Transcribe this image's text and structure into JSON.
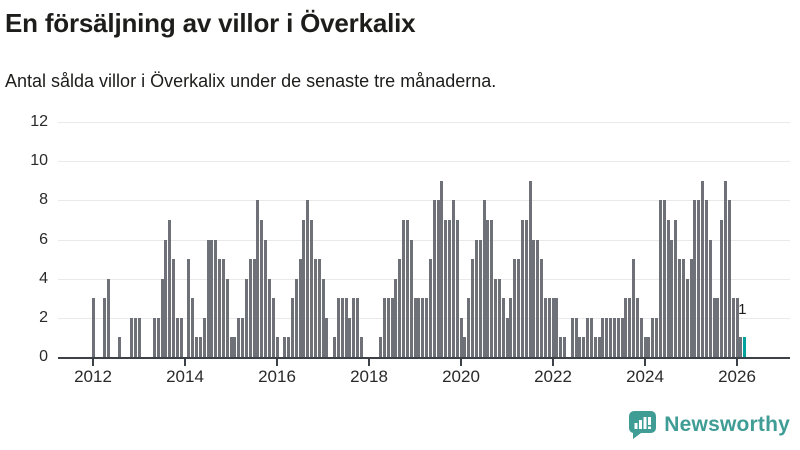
{
  "header": {
    "title": "En försäljning av villor i Överkalix",
    "subtitle": "Antal sålda villor i Överkalix under de senaste tre månaderna."
  },
  "colors": {
    "bar": "#6e7177",
    "highlight": "#00a39c",
    "grid": "#e9e9e9",
    "axis": "#3c4147",
    "text": "#1d1d1b",
    "brand": "#3f9d95"
  },
  "chart_data": {
    "type": "bar",
    "title": "En försäljning av villor i Överkalix",
    "subtitle": "Antal sålda villor i Överkalix under de senaste tre månaderna.",
    "xlabel": "",
    "ylabel": "",
    "y_axis": {
      "ticks": [
        0,
        2,
        4,
        6,
        8,
        10,
        12
      ],
      "range": [
        0,
        12
      ]
    },
    "x_axis": {
      "tick_labels": [
        "2012",
        "2014",
        "2016",
        "2018",
        "2020",
        "2022",
        "2024",
        "2026"
      ],
      "tick_years": [
        2012,
        2014,
        2016,
        2018,
        2020,
        2022,
        2024,
        2026
      ]
    },
    "grid": "horizontal",
    "legend": "none",
    "series_name": "Antal sålda villor under de senaste tre månaderna",
    "start_month": "2012-01",
    "end_month": "2026-03",
    "values": [
      3,
      0,
      0,
      3,
      4,
      0,
      0,
      1,
      0,
      0,
      2,
      2,
      2,
      0,
      0,
      0,
      2,
      2,
      4,
      6,
      7,
      5,
      2,
      2,
      0,
      5,
      3,
      1,
      1,
      2,
      6,
      6,
      6,
      5,
      5,
      4,
      1,
      1,
      2,
      2,
      4,
      5,
      5,
      8,
      7,
      6,
      4,
      3,
      1,
      0,
      1,
      1,
      3,
      4,
      5,
      7,
      8,
      7,
      5,
      5,
      4,
      2,
      0,
      1,
      3,
      3,
      3,
      2,
      3,
      3,
      1,
      0,
      0,
      0,
      0,
      1,
      3,
      3,
      3,
      4,
      5,
      7,
      7,
      6,
      3,
      3,
      3,
      3,
      5,
      8,
      8,
      9,
      7,
      7,
      8,
      7,
      2,
      1,
      3,
      5,
      6,
      6,
      8,
      7,
      7,
      4,
      4,
      3,
      2,
      3,
      5,
      5,
      7,
      7,
      9,
      6,
      6,
      5,
      3,
      3,
      3,
      3,
      1,
      1,
      0,
      2,
      2,
      1,
      1,
      2,
      2,
      1,
      1,
      2,
      2,
      2,
      2,
      2,
      2,
      3,
      3,
      5,
      3,
      2,
      1,
      1,
      2,
      2,
      8,
      8,
      7,
      6,
      7,
      5,
      5,
      4,
      5,
      8,
      8,
      9,
      8,
      6,
      3,
      3,
      7,
      9,
      8,
      3,
      3,
      1,
      1
    ],
    "highlight": {
      "index": 170,
      "month": "2026-03",
      "value": 1,
      "label": "1"
    }
  },
  "footer": {
    "brand": "Newsworthy",
    "icon": "newsworthy-chart-bubble-icon"
  }
}
